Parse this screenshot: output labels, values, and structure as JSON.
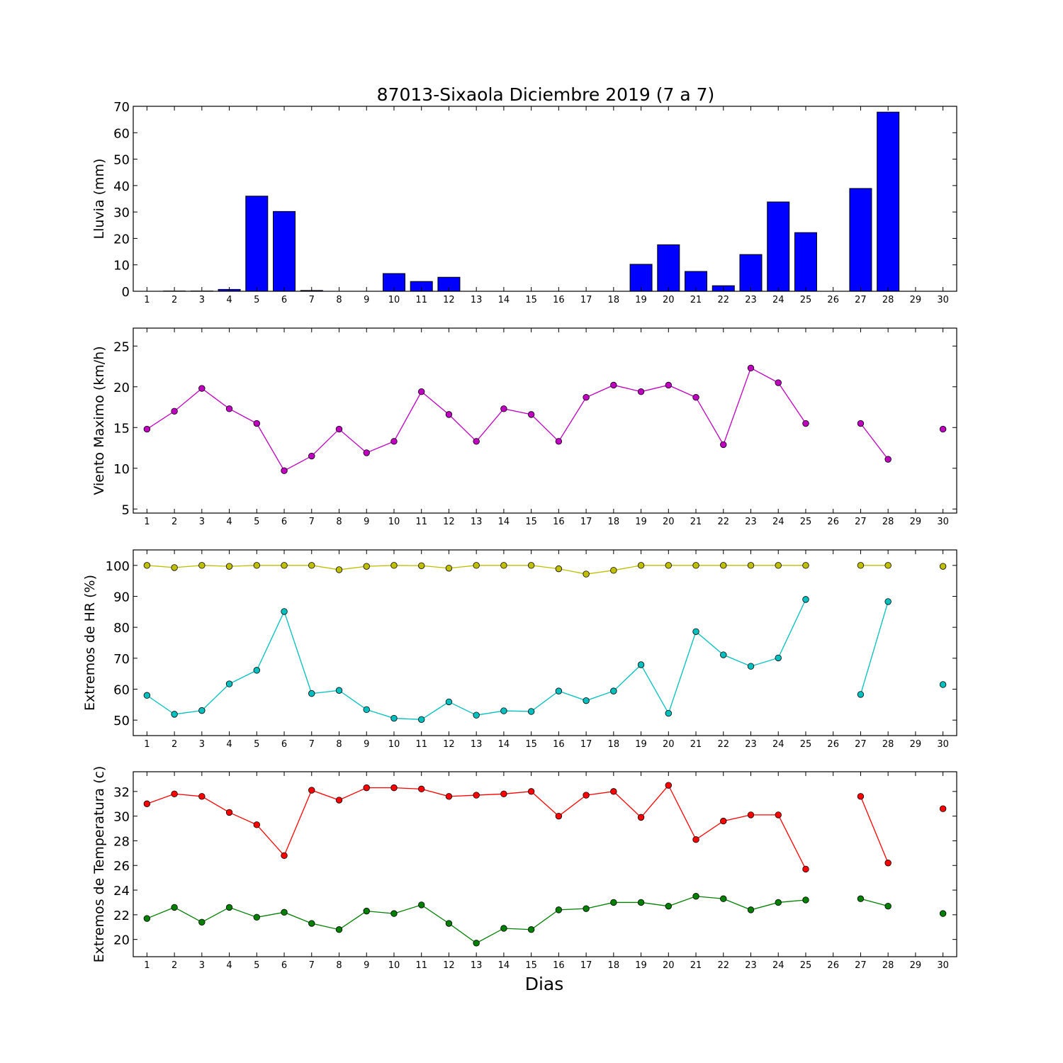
{
  "chart_data": {
    "title": "87013-Sixaola Diciembre 2019  (7 a 7)",
    "xlabel": "Dias",
    "x": [
      1,
      2,
      3,
      4,
      5,
      6,
      7,
      8,
      9,
      10,
      11,
      12,
      13,
      14,
      15,
      16,
      17,
      18,
      19,
      20,
      21,
      22,
      23,
      24,
      25,
      26,
      27,
      28,
      29,
      30
    ],
    "panels": [
      {
        "type": "bar",
        "ylabel": "Lluvia (mm)",
        "ylim": [
          0,
          70
        ],
        "yticks": [
          0,
          10,
          20,
          30,
          40,
          50,
          60,
          70
        ],
        "series": [
          {
            "color": "#0000ff",
            "values": [
              0,
              0.1,
              0.1,
              0.7,
              36,
              30.2,
              0.3,
              0,
              0,
              6.7,
              3.7,
              5.3,
              0,
              0,
              0,
              0,
              0,
              0,
              10.2,
              17.6,
              7.5,
              2.1,
              13.9,
              33.8,
              22.2,
              null,
              38.9,
              67.8,
              null,
              null
            ]
          }
        ]
      },
      {
        "type": "line",
        "ylabel": "Viento Maximo (km/h)",
        "ylim": [
          4.5,
          27.2
        ],
        "yticks": [
          5,
          10,
          15,
          20,
          25
        ],
        "series": [
          {
            "color": "#bf00bf",
            "values": [
              14.8,
              17.0,
              19.8,
              17.3,
              15.5,
              9.7,
              11.5,
              14.8,
              11.9,
              13.3,
              19.4,
              16.6,
              13.3,
              17.3,
              16.6,
              13.3,
              18.7,
              20.2,
              19.4,
              20.2,
              18.7,
              12.9,
              22.3,
              20.5,
              15.5,
              null,
              15.5,
              11.1,
              null,
              14.8
            ]
          }
        ]
      },
      {
        "type": "line",
        "ylabel": "Extremos de HR (%)",
        "ylim": [
          45,
          105
        ],
        "yticks": [
          50,
          60,
          70,
          80,
          90,
          100
        ],
        "series": [
          {
            "color": "#bfbf00",
            "values": [
              100,
              99.3,
              100,
              99.7,
              100,
              100,
              100,
              98.6,
              99.7,
              100,
              99.9,
              99.1,
              100,
              100,
              100,
              98.9,
              97.2,
              98.4,
              100,
              100,
              100,
              100,
              100,
              100,
              100,
              null,
              100,
              100,
              null,
              99.7
            ]
          },
          {
            "color": "#00bfbf",
            "values": [
              58.0,
              51.9,
              53.1,
              61.7,
              66.1,
              85.1,
              58.6,
              59.6,
              53.4,
              50.6,
              50.2,
              55.9,
              51.6,
              53.0,
              52.8,
              59.4,
              56.3,
              59.4,
              67.9,
              52.2,
              78.6,
              71.1,
              67.4,
              70.1,
              89.0,
              null,
              58.3,
              88.3,
              null,
              61.5
            ]
          }
        ]
      },
      {
        "type": "line",
        "ylabel": "Extremos de Temperatura (c)",
        "ylim": [
          18.6,
          33.6
        ],
        "yticks": [
          20,
          22,
          24,
          26,
          28,
          30,
          32
        ],
        "series": [
          {
            "color": "#ff0000",
            "values": [
              31.0,
              31.8,
              31.6,
              30.3,
              29.3,
              26.8,
              32.1,
              31.3,
              32.3,
              32.3,
              32.2,
              31.6,
              31.7,
              31.8,
              32.0,
              30.0,
              31.7,
              32.0,
              29.9,
              32.5,
              28.1,
              29.6,
              30.1,
              30.1,
              25.7,
              null,
              31.6,
              26.2,
              null,
              30.6
            ]
          },
          {
            "color": "#007f00",
            "values": [
              21.7,
              22.6,
              21.4,
              22.6,
              21.8,
              22.2,
              21.3,
              20.8,
              22.3,
              22.1,
              22.8,
              21.3,
              19.7,
              20.9,
              20.8,
              22.4,
              22.5,
              23.0,
              23.0,
              22.7,
              23.5,
              23.3,
              22.4,
              23.0,
              23.2,
              null,
              23.3,
              22.7,
              null,
              22.1
            ]
          }
        ]
      }
    ]
  }
}
